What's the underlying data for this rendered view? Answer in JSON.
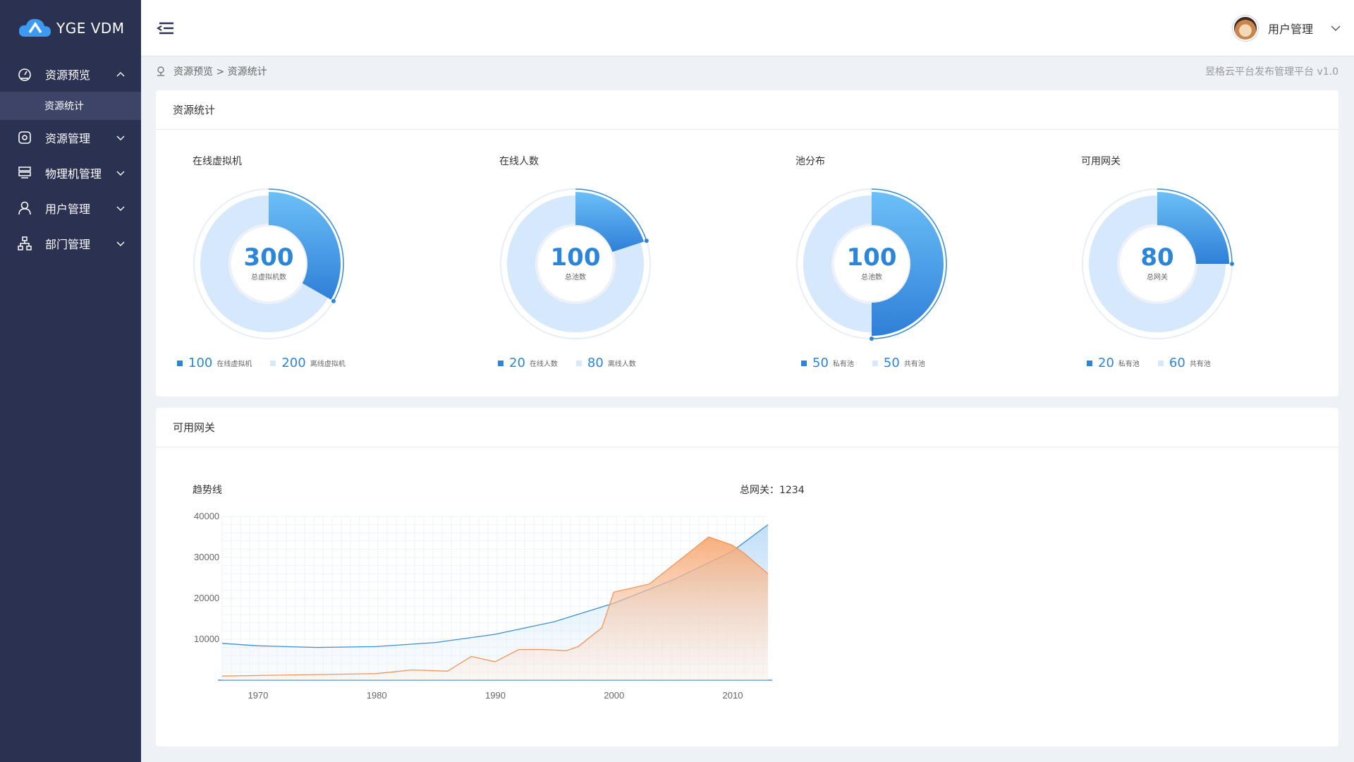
{
  "app": {
    "logo_text": "YGE VDM",
    "platform": "昱格云平台发布管理平台 v1.0"
  },
  "sidebar": {
    "items": [
      {
        "label": "资源预览",
        "icon": "dashboard-icon",
        "expanded": true
      },
      {
        "label": "资源管理",
        "icon": "resource-icon",
        "expanded": false
      },
      {
        "label": "物理机管理",
        "icon": "server-icon",
        "expanded": false
      },
      {
        "label": "用户管理",
        "icon": "user-icon",
        "expanded": false
      },
      {
        "label": "部门管理",
        "icon": "org-icon",
        "expanded": false
      }
    ],
    "subitems": [
      {
        "label": "资源统计",
        "active": true
      }
    ]
  },
  "header": {
    "user_label": "用户管理"
  },
  "breadcrumb": {
    "text": "资源预览 > 资源统计"
  },
  "card1": {
    "title": "资源统计",
    "donuts": [
      {
        "title": "在线虚拟机",
        "value": "300",
        "sub": "总虚拟机数",
        "fraction": 0.333,
        "legend": [
          {
            "num": "100",
            "txt": "在线虚拟机"
          },
          {
            "num": "200",
            "txt": "离线虚拟机"
          }
        ]
      },
      {
        "title": "在线人数",
        "value": "100",
        "sub": "总池数",
        "fraction": 0.2,
        "legend": [
          {
            "num": "20",
            "txt": "在线人数"
          },
          {
            "num": "80",
            "txt": "离线人数"
          }
        ]
      },
      {
        "title": "池分布",
        "value": "100",
        "sub": "总池数",
        "fraction": 0.5,
        "legend": [
          {
            "num": "50",
            "txt": "私有池"
          },
          {
            "num": "50",
            "txt": "共有池"
          }
        ]
      },
      {
        "title": "可用网关",
        "value": "80",
        "sub": "总网关",
        "fraction": 0.25,
        "legend": [
          {
            "num": "20",
            "txt": "私有池"
          },
          {
            "num": "60",
            "txt": "共有池"
          }
        ]
      }
    ]
  },
  "card2": {
    "title": "可用网关",
    "trend_title": "趋势线",
    "total_label": "总网关：1234"
  },
  "chart_data": {
    "type": "area",
    "ylim": [
      0,
      40000
    ],
    "yticks": [
      10000,
      20000,
      30000,
      40000
    ],
    "xticks": [
      1970,
      1980,
      1990,
      2000,
      2010
    ],
    "xlim": [
      1967,
      2013
    ],
    "series": [
      {
        "color": "#3d8fd4",
        "x": [
          1967,
          1970,
          1975,
          1980,
          1985,
          1990,
          1995,
          2000,
          2005,
          2010,
          2013
        ],
        "y": [
          9000,
          8400,
          8000,
          8200,
          9200,
          11200,
          14300,
          18800,
          24500,
          31500,
          38000
        ]
      },
      {
        "color": "#f0955a",
        "x": [
          1967,
          1980,
          1983,
          1986,
          1988,
          1990,
          1992,
          1994,
          1996,
          1997,
          1999,
          2000,
          2003,
          2008,
          2010,
          2011,
          2013
        ],
        "y": [
          1000,
          1600,
          2500,
          2200,
          5800,
          4500,
          7500,
          7500,
          7200,
          8200,
          12800,
          21500,
          23500,
          35000,
          33000,
          31000,
          26000
        ]
      }
    ]
  },
  "colors": {
    "primary": "#2b86d9",
    "light": "#d6e8fb",
    "sidebar": "#2b3151"
  }
}
